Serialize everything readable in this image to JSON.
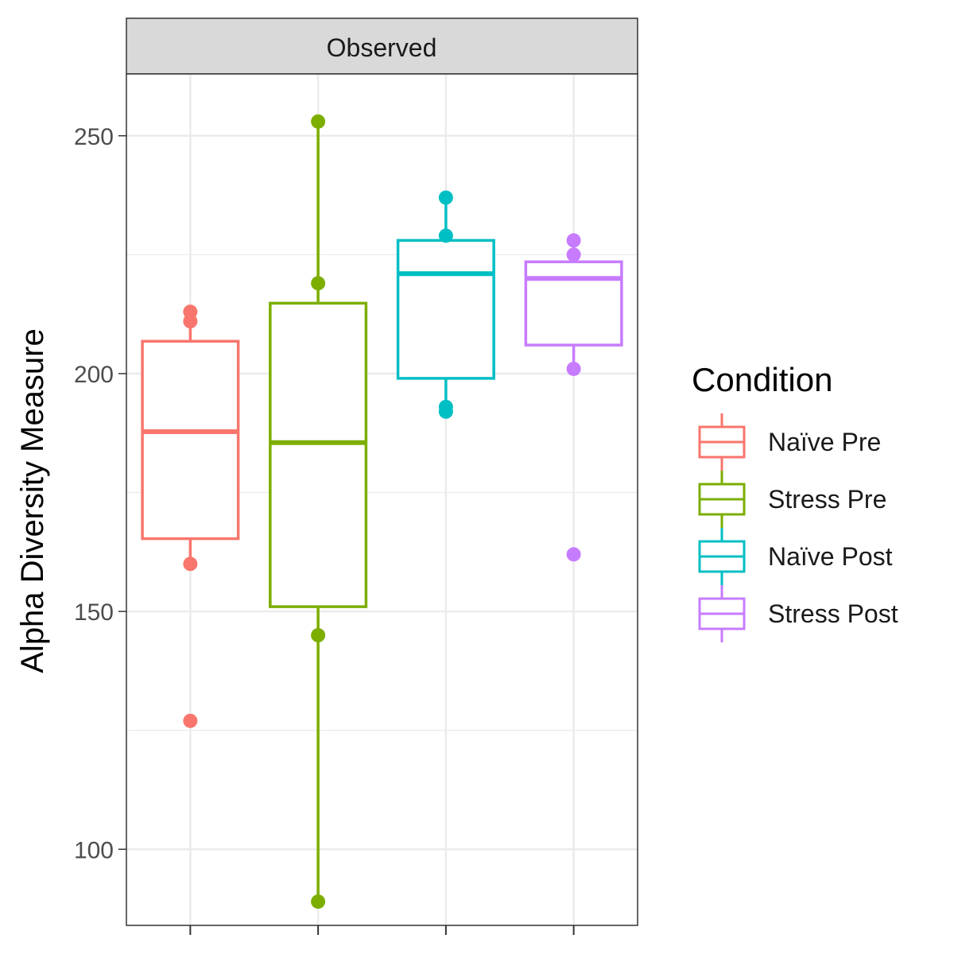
{
  "chart_data": {
    "type": "boxplot",
    "facet_title": "Observed",
    "ylabel": "Alpha Diversity Measure",
    "xlabel": "",
    "ylim": [
      84,
      263
    ],
    "yticks": [
      100,
      150,
      200,
      250
    ],
    "grid": true,
    "legend": {
      "title": "Condition",
      "placement": "right"
    },
    "series": [
      {
        "name": "Naïve Pre",
        "color": "#F8766D",
        "q1": 165.3,
        "median": 187.8,
        "q3": 206.8,
        "whisker_low": 160,
        "whisker_high": 213,
        "points": [
          127,
          160,
          211,
          213
        ]
      },
      {
        "name": "Stress Pre",
        "color": "#7CAE00",
        "q1": 151,
        "median": 185.5,
        "q3": 214.8,
        "whisker_low": 89,
        "whisker_high": 253,
        "points": [
          89,
          145,
          219,
          253
        ]
      },
      {
        "name": "Naïve Post",
        "color": "#00BFC4",
        "q1": 199,
        "median": 221,
        "q3": 228,
        "whisker_low": 192,
        "whisker_high": 237,
        "points": [
          192,
          193,
          229,
          237
        ]
      },
      {
        "name": "Stress Post",
        "color": "#C77CFF",
        "q1": 206,
        "median": 220,
        "q3": 223.5,
        "whisker_low": 201,
        "whisker_high": 228,
        "points": [
          162,
          201,
          225,
          228
        ]
      }
    ]
  }
}
